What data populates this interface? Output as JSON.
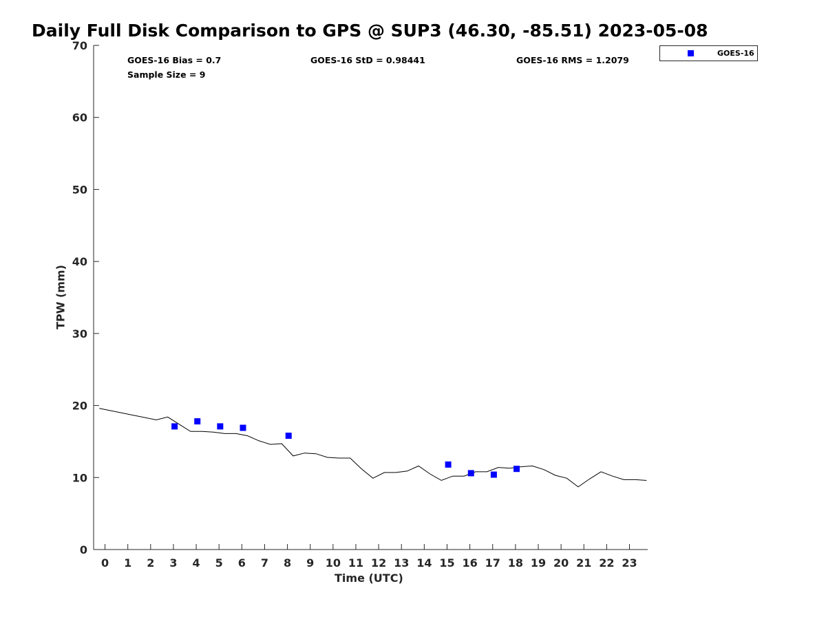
{
  "title": "Daily Full Disk Comparison to GPS @ SUP3 (46.30, -85.51) 2023-05-08",
  "stats": {
    "bias": "GOES-16 Bias = 0.7",
    "sample_size": "Sample Size = 9",
    "std": "GOES-16 StD = 0.98441",
    "rms": "GOES-16 RMS = 1.2079"
  },
  "legend": {
    "label": "GOES-16",
    "marker_color": "#0000ff"
  },
  "chart_data": {
    "type": "scatter",
    "title": "Daily Full Disk Comparison to GPS @ SUP3 (46.30, -85.51) 2023-05-08",
    "xlabel": "Time (UTC)",
    "ylabel": "TPW (mm)",
    "xlim": [
      -0.5,
      23.8
    ],
    "ylim": [
      0,
      70
    ],
    "xticks": [
      0,
      1,
      2,
      3,
      4,
      5,
      6,
      7,
      8,
      9,
      10,
      11,
      12,
      13,
      14,
      15,
      16,
      17,
      18,
      19,
      20,
      21,
      22,
      23
    ],
    "yticks": [
      0,
      10,
      20,
      30,
      40,
      50,
      60,
      70
    ],
    "grid": false,
    "legend_position": "top-right outside",
    "series": [
      {
        "type": "line",
        "color": "#000000",
        "x": [
          -0.25,
          2.25,
          2.75,
          3.25,
          3.75,
          4.25,
          4.75,
          5.25,
          5.75,
          6.25,
          6.75,
          7.25,
          7.75,
          8.25,
          8.75,
          9.25,
          9.75,
          10.25,
          10.75,
          11.25,
          11.75,
          12.25,
          12.75,
          13.25,
          13.75,
          14.25,
          14.75,
          15.25,
          15.75,
          16.25,
          16.75,
          17.25,
          17.75,
          18.25,
          18.75,
          19.25,
          19.75,
          20.25,
          20.75,
          21.25,
          21.75,
          22.25,
          22.75,
          23.25,
          23.75
        ],
        "y": [
          19.6,
          18.0,
          18.4,
          17.4,
          16.4,
          16.4,
          16.3,
          16.1,
          16.1,
          15.8,
          15.1,
          14.6,
          14.7,
          13.0,
          13.4,
          13.3,
          12.8,
          12.7,
          12.7,
          11.2,
          9.9,
          10.7,
          10.7,
          10.9,
          11.6,
          10.5,
          9.6,
          10.2,
          10.2,
          10.8,
          10.8,
          11.4,
          11.3,
          11.5,
          11.6,
          11.1,
          10.3,
          9.9,
          8.7,
          9.8,
          10.8,
          10.2,
          9.7,
          9.7,
          9.6
        ]
      },
      {
        "name": "GOES-16",
        "type": "scatter",
        "color": "#0000ff",
        "marker": "square",
        "x": [
          3.05,
          4.05,
          5.05,
          6.05,
          8.05,
          15.05,
          16.05,
          17.05,
          18.05
        ],
        "y": [
          17.1,
          17.8,
          17.1,
          16.9,
          15.8,
          11.8,
          10.6,
          10.4,
          11.2
        ]
      }
    ]
  }
}
